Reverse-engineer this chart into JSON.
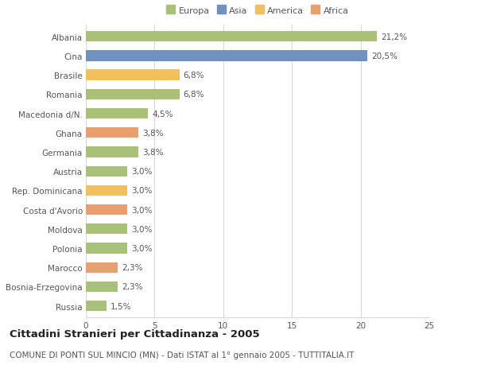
{
  "categories": [
    "Albania",
    "Cina",
    "Brasile",
    "Romania",
    "Macedonia d/N.",
    "Ghana",
    "Germania",
    "Austria",
    "Rep. Dominicana",
    "Costa d'Avorio",
    "Moldova",
    "Polonia",
    "Marocco",
    "Bosnia-Erzegovina",
    "Russia"
  ],
  "values": [
    21.2,
    20.5,
    6.8,
    6.8,
    4.5,
    3.8,
    3.8,
    3.0,
    3.0,
    3.0,
    3.0,
    3.0,
    2.3,
    2.3,
    1.5
  ],
  "labels": [
    "21,2%",
    "20,5%",
    "6,8%",
    "6,8%",
    "4,5%",
    "3,8%",
    "3,8%",
    "3,0%",
    "3,0%",
    "3,0%",
    "3,0%",
    "3,0%",
    "2,3%",
    "2,3%",
    "1,5%"
  ],
  "colors": [
    "#a8c078",
    "#7090c0",
    "#f0c060",
    "#a8c078",
    "#a8c078",
    "#e8a070",
    "#a8c078",
    "#a8c078",
    "#f0c060",
    "#e8a070",
    "#a8c078",
    "#a8c078",
    "#e8a070",
    "#a8c078",
    "#a8c078"
  ],
  "legend": [
    {
      "label": "Europa",
      "color": "#a8c078"
    },
    {
      "label": "Asia",
      "color": "#7090c0"
    },
    {
      "label": "America",
      "color": "#f0c060"
    },
    {
      "label": "Africa",
      "color": "#e8a070"
    }
  ],
  "xlim": [
    0,
    25
  ],
  "xticks": [
    0,
    5,
    10,
    15,
    20,
    25
  ],
  "title": "Cittadini Stranieri per Cittadinanza - 2005",
  "subtitle": "COMUNE DI PONTI SUL MINCIO (MN) - Dati ISTAT al 1° gennaio 2005 - TUTTITALIA.IT",
  "background_color": "#ffffff",
  "grid_color": "#d8d8d8",
  "bar_height": 0.55,
  "label_fontsize": 7.5,
  "tick_fontsize": 7.5,
  "title_fontsize": 9.5,
  "subtitle_fontsize": 7.5
}
